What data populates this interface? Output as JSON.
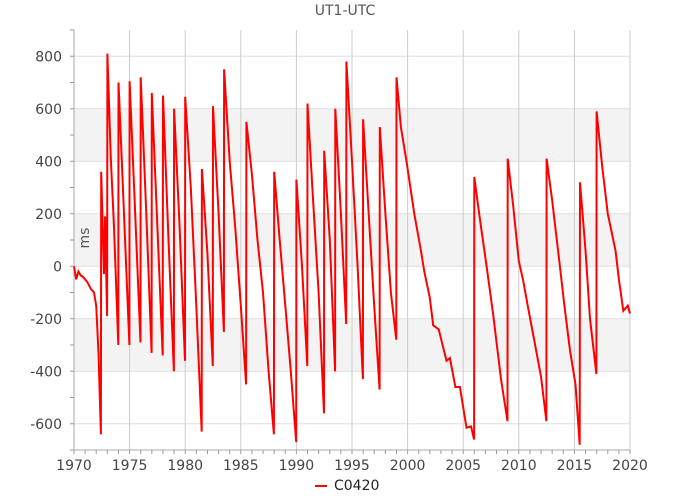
{
  "chart_data": {
    "type": "line",
    "title": "UT1-UTC",
    "xlabel": "",
    "ylabel": "ms",
    "xlim": [
      1970,
      2020
    ],
    "ylim": [
      -700,
      900
    ],
    "xticks": [
      1970,
      1975,
      1980,
      1985,
      1990,
      1995,
      2000,
      2005,
      2010,
      2015,
      2020
    ],
    "yticks": [
      -600,
      -400,
      -200,
      0,
      200,
      400,
      600,
      800
    ],
    "grid": true,
    "legend_position": "bottom-center",
    "series": [
      {
        "name": "C0420",
        "color": "#ff0000",
        "points": [
          [
            1970.0,
            0
          ],
          [
            1970.2,
            -50
          ],
          [
            1970.4,
            -20
          ],
          [
            1970.6,
            -35
          ],
          [
            1970.8,
            -40
          ],
          [
            1971.2,
            -60
          ],
          [
            1971.5,
            -85
          ],
          [
            1971.8,
            -100
          ],
          [
            1972.0,
            -150
          ],
          [
            1972.2,
            -330
          ],
          [
            1972.42,
            -640
          ],
          [
            1972.45,
            360
          ],
          [
            1972.7,
            -30
          ],
          [
            1972.8,
            190
          ],
          [
            1972.98,
            -190
          ],
          [
            1973.0,
            810
          ],
          [
            1973.3,
            420
          ],
          [
            1973.6,
            150
          ],
          [
            1973.98,
            -300
          ],
          [
            1974.0,
            700
          ],
          [
            1974.4,
            300
          ],
          [
            1974.98,
            -300
          ],
          [
            1975.0,
            705
          ],
          [
            1975.5,
            200
          ],
          [
            1975.98,
            -290
          ],
          [
            1976.0,
            720
          ],
          [
            1976.5,
            200
          ],
          [
            1976.98,
            -330
          ],
          [
            1977.0,
            660
          ],
          [
            1977.5,
            150
          ],
          [
            1977.98,
            -340
          ],
          [
            1978.0,
            650
          ],
          [
            1978.5,
            100
          ],
          [
            1978.98,
            -400
          ],
          [
            1979.0,
            600
          ],
          [
            1979.5,
            150
          ],
          [
            1979.98,
            -360
          ],
          [
            1980.0,
            645
          ],
          [
            1980.5,
            300
          ],
          [
            1981.0,
            -150
          ],
          [
            1981.48,
            -630
          ],
          [
            1981.5,
            370
          ],
          [
            1982.0,
            50
          ],
          [
            1982.48,
            -380
          ],
          [
            1982.5,
            610
          ],
          [
            1983.0,
            200
          ],
          [
            1983.48,
            -250
          ],
          [
            1983.5,
            750
          ],
          [
            1984.0,
            400
          ],
          [
            1984.5,
            150
          ],
          [
            1985.0,
            -150
          ],
          [
            1985.48,
            -450
          ],
          [
            1985.5,
            550
          ],
          [
            1986.0,
            350
          ],
          [
            1986.5,
            100
          ],
          [
            1987.0,
            -100
          ],
          [
            1987.5,
            -400
          ],
          [
            1987.98,
            -640
          ],
          [
            1988.0,
            360
          ],
          [
            1988.5,
            100
          ],
          [
            1989.0,
            -150
          ],
          [
            1989.5,
            -400
          ],
          [
            1989.98,
            -670
          ],
          [
            1990.0,
            330
          ],
          [
            1990.5,
            0
          ],
          [
            1990.98,
            -380
          ],
          [
            1991.0,
            620
          ],
          [
            1991.5,
            250
          ],
          [
            1992.0,
            -100
          ],
          [
            1992.48,
            -560
          ],
          [
            1992.5,
            440
          ],
          [
            1993.0,
            100
          ],
          [
            1993.48,
            -400
          ],
          [
            1993.5,
            600
          ],
          [
            1994.0,
            200
          ],
          [
            1994.48,
            -220
          ],
          [
            1994.5,
            780
          ],
          [
            1995.0,
            400
          ],
          [
            1995.5,
            0
          ],
          [
            1995.98,
            -430
          ],
          [
            1996.0,
            560
          ],
          [
            1996.5,
            200
          ],
          [
            1997.0,
            -150
          ],
          [
            1997.48,
            -470
          ],
          [
            1997.5,
            530
          ],
          [
            1998.0,
            200
          ],
          [
            1998.5,
            -100
          ],
          [
            1998.98,
            -280
          ],
          [
            1999.0,
            720
          ],
          [
            1999.4,
            530
          ],
          [
            1999.9,
            400
          ],
          [
            2000.6,
            200
          ],
          [
            2001.2,
            60
          ],
          [
            2001.5,
            -20
          ],
          [
            2002.0,
            -120
          ],
          [
            2002.3,
            -225
          ],
          [
            2002.8,
            -240
          ],
          [
            2003.5,
            -360
          ],
          [
            2003.8,
            -350
          ],
          [
            2004.3,
            -460
          ],
          [
            2004.7,
            -460
          ],
          [
            2005.3,
            -615
          ],
          [
            2005.7,
            -610
          ],
          [
            2005.98,
            -660
          ],
          [
            2006.0,
            340
          ],
          [
            2006.5,
            180
          ],
          [
            2007.1,
            0
          ],
          [
            2007.7,
            -185
          ],
          [
            2008.4,
            -430
          ],
          [
            2008.98,
            -590
          ],
          [
            2009.0,
            410
          ],
          [
            2009.5,
            230
          ],
          [
            2010.0,
            20
          ],
          [
            2010.4,
            -55
          ],
          [
            2010.8,
            -150
          ],
          [
            2011.4,
            -285
          ],
          [
            2012.0,
            -420
          ],
          [
            2012.48,
            -590
          ],
          [
            2012.5,
            410
          ],
          [
            2013.0,
            250
          ],
          [
            2013.7,
            0
          ],
          [
            2014.1,
            -150
          ],
          [
            2014.6,
            -320
          ],
          [
            2015.1,
            -450
          ],
          [
            2015.48,
            -680
          ],
          [
            2015.5,
            320
          ],
          [
            2016.0,
            61
          ],
          [
            2016.4,
            -200
          ],
          [
            2016.98,
            -410
          ],
          [
            2017.0,
            590
          ],
          [
            2017.5,
            380
          ],
          [
            2018.0,
            200
          ],
          [
            2018.7,
            60
          ],
          [
            2019.0,
            -50
          ],
          [
            2019.4,
            -170
          ],
          [
            2019.8,
            -150
          ],
          [
            2020.0,
            -180
          ]
        ]
      }
    ]
  }
}
